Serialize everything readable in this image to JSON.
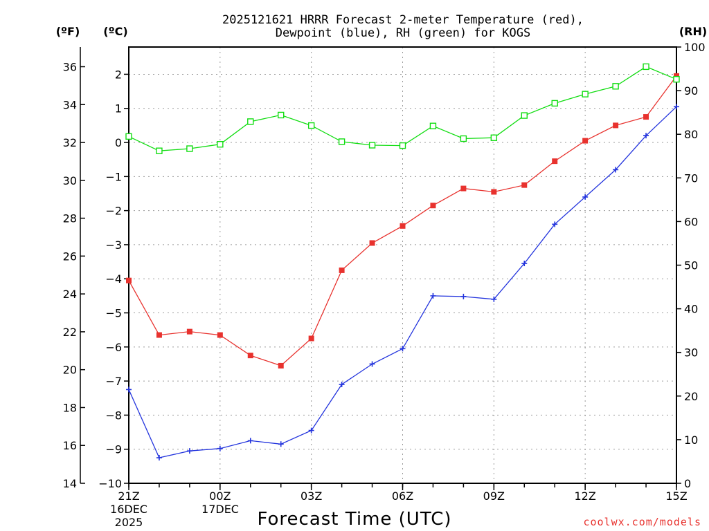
{
  "chart_data": {
    "type": "line",
    "title_line1": "2025121621 HRRR Forecast 2-meter Temperature (red),",
    "title_line2": "Dewpoint (blue), RH (green) for KOGS",
    "xlabel": "Forecast Time (UTC)",
    "credit": "coolwx.com/models",
    "unit_f": "(ºF)",
    "unit_c": "(ºC)",
    "unit_rh": "(RH)",
    "date_label_1": "16DEC",
    "date_label_2": "2025",
    "date_label_3": "17DEC",
    "x_hours": [
      0,
      1,
      2,
      3,
      4,
      5,
      6,
      7,
      8,
      9,
      10,
      11,
      12,
      13,
      14,
      15,
      16,
      17,
      18
    ],
    "x_tick_labels": [
      {
        "hour": 0,
        "label": "21Z"
      },
      {
        "hour": 3,
        "label": "00Z"
      },
      {
        "hour": 6,
        "label": "03Z"
      },
      {
        "hour": 9,
        "label": "06Z"
      },
      {
        "hour": 12,
        "label": "09Z"
      },
      {
        "hour": 15,
        "label": "12Z"
      },
      {
        "hour": 18,
        "label": "15Z"
      }
    ],
    "ylim_c": [
      -10,
      2.8
    ],
    "ylim_rh": [
      0,
      100
    ],
    "y_ticks_c": [
      "-10",
      "-9",
      "-8",
      "-7",
      "-6",
      "-5",
      "-4",
      "-3",
      "-2",
      "-1",
      "0",
      "1",
      "2"
    ],
    "y_ticks_f": [
      "14",
      "16",
      "18",
      "20",
      "22",
      "24",
      "26",
      "28",
      "30",
      "32",
      "34",
      "36"
    ],
    "y_ticks_rh": [
      "0",
      "10",
      "20",
      "30",
      "40",
      "50",
      "60",
      "70",
      "80",
      "90",
      "100"
    ],
    "series": [
      {
        "name": "2-meter Temperature",
        "unit": "C",
        "color": "#e8322e",
        "marker": "filled-square",
        "values": [
          -4.05,
          -5.65,
          -5.55,
          -5.65,
          -6.25,
          -6.55,
          -5.75,
          -3.75,
          -2.95,
          -2.45,
          -1.85,
          -1.35,
          -1.45,
          -1.25,
          -0.55,
          0.05,
          0.5,
          0.75,
          1.95
        ]
      },
      {
        "name": "Dewpoint",
        "unit": "C",
        "color": "#2233dd",
        "marker": "plus",
        "values": [
          -7.25,
          -9.25,
          -9.05,
          -8.98,
          -8.75,
          -8.85,
          -8.45,
          -7.1,
          -6.5,
          -6.05,
          -4.5,
          -4.52,
          -4.6,
          -3.55,
          -2.4,
          -1.6,
          -0.8,
          0.2,
          1.05
        ]
      },
      {
        "name": "RH",
        "unit": "%",
        "color": "#11dd11",
        "marker": "open-square",
        "values": [
          79.5,
          76.2,
          76.7,
          77.7,
          82.9,
          84.4,
          82.0,
          78.3,
          77.5,
          77.4,
          81.9,
          79.0,
          79.2,
          84.3,
          87.1,
          89.2,
          91.0,
          95.5,
          92.6
        ]
      }
    ]
  }
}
